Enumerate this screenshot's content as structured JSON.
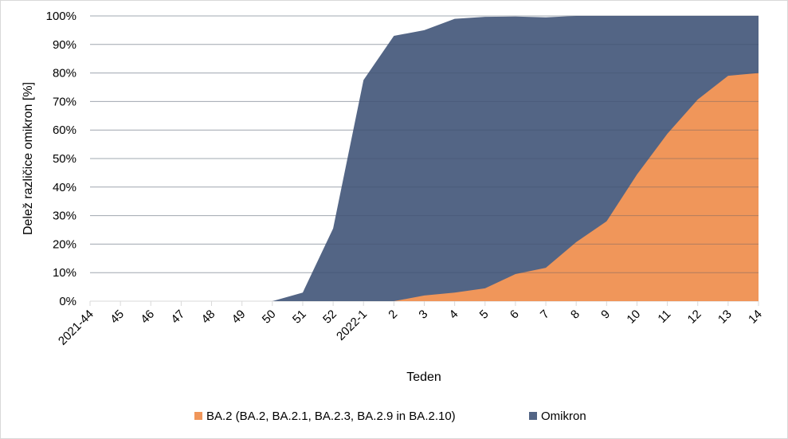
{
  "chart_data": {
    "type": "area",
    "title": "",
    "xlabel": "Teden",
    "ylabel": "Delež različice omikron [%]",
    "ylim": [
      0,
      100
    ],
    "yticks": [
      "0%",
      "10%",
      "20%",
      "30%",
      "40%",
      "50%",
      "60%",
      "70%",
      "80%",
      "90%",
      "100%"
    ],
    "categories": [
      "2021-44",
      "45",
      "46",
      "47",
      "48",
      "49",
      "50",
      "51",
      "52",
      "2022-1",
      "2",
      "3",
      "4",
      "5",
      "6",
      "7",
      "8",
      "9",
      "10",
      "11",
      "12",
      "13",
      "14"
    ],
    "grid": true,
    "legend_position": "bottom",
    "series": [
      {
        "name": "Omikron",
        "color": "#536585",
        "values": [
          0,
          0,
          0,
          0,
          0,
          0,
          0,
          3,
          25.5,
          77.5,
          93,
          95,
          99,
          99.7,
          99.8,
          99.5,
          100,
          100,
          100,
          100,
          100,
          100,
          100
        ]
      },
      {
        "name": "BA.2 (BA.2, BA.2.1, BA.2.3, BA.2.9 in BA.2.10)",
        "color": "#f0965a",
        "values": [
          0,
          0,
          0,
          0,
          0,
          0,
          0,
          0,
          0,
          0,
          0,
          2,
          3,
          4.5,
          9.5,
          11.7,
          20.7,
          28,
          44.4,
          58.7,
          70.7,
          79,
          80
        ]
      }
    ]
  }
}
